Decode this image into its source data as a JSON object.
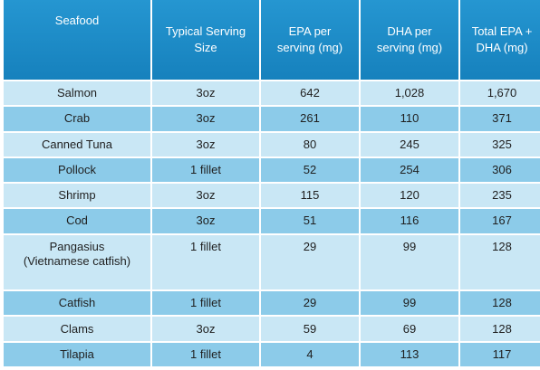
{
  "table": {
    "headers": [
      {
        "key": "seafood",
        "lines": [
          "Seafood"
        ]
      },
      {
        "key": "serving",
        "lines": [
          "Typical Serving",
          "Size"
        ]
      },
      {
        "key": "epa",
        "lines": [
          "EPA per",
          "serving (mg)"
        ]
      },
      {
        "key": "dha",
        "lines": [
          "DHA per",
          "serving (mg)"
        ]
      },
      {
        "key": "total",
        "lines": [
          "Total EPA +",
          "DHA (mg)"
        ]
      }
    ],
    "rows": [
      {
        "seafood": [
          "Salmon"
        ],
        "serving": "3oz",
        "epa": "642",
        "dha": "1,028",
        "total": "1,670",
        "shade": "light",
        "tall": false
      },
      {
        "seafood": [
          "Crab"
        ],
        "serving": "3oz",
        "epa": "261",
        "dha": "110",
        "total": "371",
        "shade": "dark",
        "tall": false
      },
      {
        "seafood": [
          "Canned Tuna"
        ],
        "serving": "3oz",
        "epa": "80",
        "dha": "245",
        "total": "325",
        "shade": "light",
        "tall": false
      },
      {
        "seafood": [
          "Pollock"
        ],
        "serving": "1 fillet",
        "epa": "52",
        "dha": "254",
        "total": "306",
        "shade": "dark",
        "tall": false
      },
      {
        "seafood": [
          "Shrimp"
        ],
        "serving": "3oz",
        "epa": "115",
        "dha": "120",
        "total": "235",
        "shade": "light",
        "tall": false
      },
      {
        "seafood": [
          "Cod"
        ],
        "serving": "3oz",
        "epa": "51",
        "dha": "116",
        "total": "167",
        "shade": "dark",
        "tall": false
      },
      {
        "seafood": [
          "Pangasius",
          "(Vietnamese catfish)"
        ],
        "serving": "1 fillet",
        "epa": "29",
        "dha": "99",
        "total": "128",
        "shade": "light",
        "tall": true
      },
      {
        "seafood": [
          "Catfish"
        ],
        "serving": "1 fillet",
        "epa": "29",
        "dha": "99",
        "total": "128",
        "shade": "dark",
        "tall": false
      },
      {
        "seafood": [
          "Clams"
        ],
        "serving": "3oz",
        "epa": "59",
        "dha": "69",
        "total": "128",
        "shade": "light",
        "tall": false
      },
      {
        "seafood": [
          "Tilapia"
        ],
        "serving": "1 fillet",
        "epa": "4",
        "dha": "113",
        "total": "117",
        "shade": "dark",
        "tall": false
      }
    ]
  },
  "colors": {
    "header": "#1a8bc7",
    "row_light": "#c9e7f5",
    "row_dark": "#8ccbe9"
  }
}
